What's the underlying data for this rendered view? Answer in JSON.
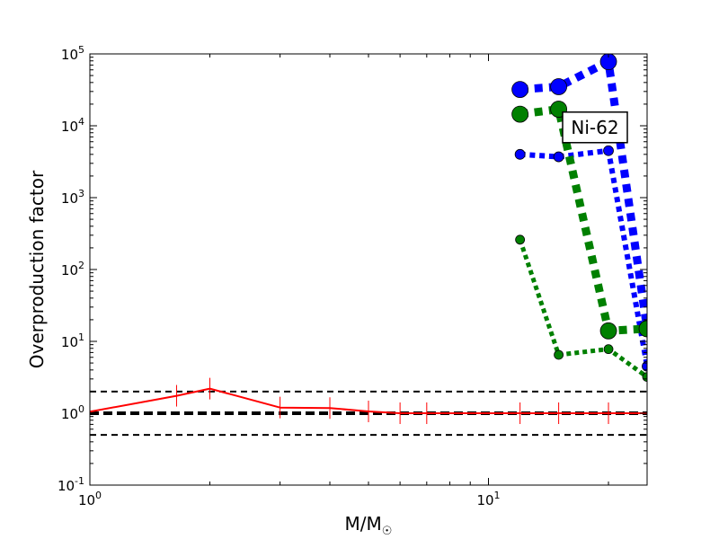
{
  "chart_data": {
    "type": "line",
    "xlabel": "M/M",
    "xlabel_subscript": "☉",
    "ylabel": "Overproduction factor",
    "x_scale": "log",
    "y_scale": "log",
    "xlim": [
      1,
      25
    ],
    "ylim": [
      0.1,
      100000
    ],
    "grid": false,
    "x_ticks": [
      {
        "value": 1,
        "base": "10",
        "exp": "0"
      },
      {
        "value": 10,
        "base": "10",
        "exp": "1"
      }
    ],
    "y_ticks": [
      {
        "value": 0.1,
        "base": "10",
        "exp": "-1"
      },
      {
        "value": 1,
        "base": "10",
        "exp": "0"
      },
      {
        "value": 10,
        "base": "10",
        "exp": "1"
      },
      {
        "value": 100,
        "base": "10",
        "exp": "2"
      },
      {
        "value": 1000,
        "base": "10",
        "exp": "3"
      },
      {
        "value": 10000,
        "base": "10",
        "exp": "4"
      },
      {
        "value": 100000,
        "base": "10",
        "exp": "5"
      }
    ],
    "reference_lines": [
      {
        "y": 2.0,
        "style": "dashed",
        "color": "#000000",
        "weight": "thin"
      },
      {
        "y": 1.0,
        "style": "dashed",
        "color": "#000000",
        "weight": "thick"
      },
      {
        "y": 0.5,
        "style": "dashed",
        "color": "#000000",
        "weight": "thin"
      }
    ],
    "annotation": {
      "text": "Ni-62",
      "x": 18.5,
      "y": 9500
    },
    "series": [
      {
        "color": "#ff0000",
        "style": "solid",
        "width": 2,
        "marker": "vline",
        "x": [
          1.0,
          1.65,
          2.0,
          3.0,
          4.0,
          5.0,
          6.0,
          7.0,
          12.0,
          15.0,
          20.0,
          25.0
        ],
        "y": [
          1.05,
          1.75,
          2.2,
          1.2,
          1.18,
          1.06,
          1.0,
          1.0,
          1.0,
          1.0,
          1.0,
          1.0
        ]
      },
      {
        "color": "#0000ff",
        "style": "dotted",
        "width": 9,
        "marker": "circle",
        "marker_radius": 9,
        "x": [
          12,
          15,
          20,
          25
        ],
        "y": [
          32000,
          35000,
          78000,
          15
        ]
      },
      {
        "color": "#0000ff",
        "style": "dotted",
        "width": 6,
        "marker": "circle",
        "marker_radius": 5.5,
        "x": [
          12,
          15,
          20,
          25
        ],
        "y": [
          4000,
          3700,
          4500,
          4.5
        ]
      },
      {
        "color": "#008000",
        "style": "dotted",
        "width": 9,
        "marker": "circle",
        "marker_radius": 9,
        "x": [
          12,
          15,
          20,
          25
        ],
        "y": [
          14500,
          17000,
          14,
          15
        ]
      },
      {
        "color": "#008000",
        "style": "dotted",
        "width": 5,
        "marker": "circle",
        "marker_radius": 5,
        "x": [
          12,
          15,
          20,
          25
        ],
        "y": [
          260,
          6.5,
          7.8,
          3.2
        ]
      }
    ]
  }
}
